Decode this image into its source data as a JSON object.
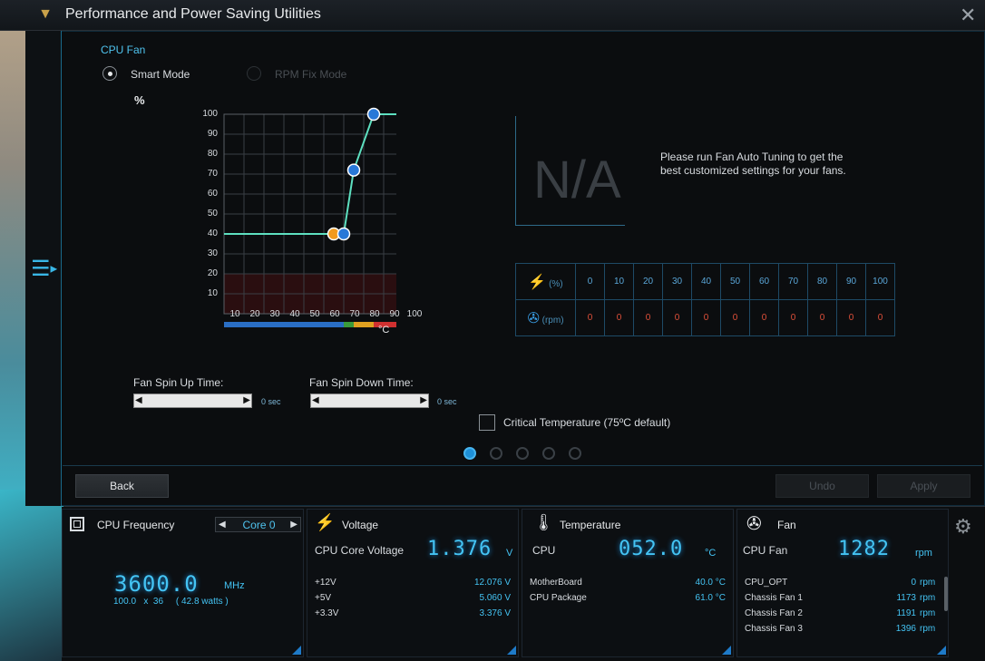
{
  "window": {
    "title": "Performance and Power Saving Utilities"
  },
  "fan_section": {
    "title": "CPU Fan",
    "modes": [
      "Smart Mode",
      "RPM Fix Mode"
    ],
    "selected_mode": "Smart Mode",
    "y_unit": "%",
    "x_unit": "°C",
    "y_ticks": [
      "100",
      "90",
      "80",
      "70",
      "60",
      "50",
      "40",
      "30",
      "20",
      "10"
    ],
    "x_ticks": [
      "10",
      "20",
      "30",
      "40",
      "50",
      "60",
      "70",
      "80",
      "90",
      "100"
    ]
  },
  "chart_data": {
    "type": "line",
    "xlabel": "°C",
    "ylabel": "%",
    "xlim": [
      0,
      100
    ],
    "ylim": [
      0,
      100
    ],
    "series": [
      {
        "x": [
          0,
          55,
          60,
          65,
          75,
          100
        ],
        "y": [
          40,
          40,
          40,
          72,
          100,
          100
        ]
      }
    ],
    "control_points": [
      {
        "x": 55,
        "y": 40,
        "color": "#f29a1c"
      },
      {
        "x": 60,
        "y": 40,
        "color": "#2878d8"
      },
      {
        "x": 65,
        "y": 72,
        "color": "#2878d8"
      },
      {
        "x": 75,
        "y": 100,
        "color": "#2878d8"
      }
    ],
    "critical_band_y": [
      0,
      20
    ],
    "temperature_zones": [
      {
        "from": 0,
        "to": 60,
        "color": "#2a6ec4"
      },
      {
        "from": 60,
        "to": 65,
        "color": "#3a9a3a"
      },
      {
        "from": 65,
        "to": 75,
        "color": "#e0a020"
      },
      {
        "from": 75,
        "to": 100,
        "color": "#d03030"
      }
    ],
    "grid": true
  },
  "auto_tuning": {
    "value": "N/A",
    "message": "Please run Fan Auto Tuning to get the best customized settings for your fans.",
    "pct_label": "(%)",
    "rpm_label": "(rpm)",
    "pct_values": [
      "0",
      "10",
      "20",
      "30",
      "40",
      "50",
      "60",
      "70",
      "80",
      "90",
      "100"
    ],
    "rpm_values": [
      "0",
      "0",
      "0",
      "0",
      "0",
      "0",
      "0",
      "0",
      "0",
      "0",
      "0"
    ]
  },
  "spin": {
    "up_label": "Fan Spin Up Time:",
    "up_value": "0 sec",
    "down_label": "Fan Spin Down Time:",
    "down_value": "0 sec"
  },
  "critical": {
    "label": "Critical Temperature (75ºC default)",
    "checked": false
  },
  "pager": {
    "count": 5,
    "active": 0
  },
  "buttons": {
    "back": "Back",
    "undo": "Undo",
    "apply": "Apply"
  },
  "cpu_freq": {
    "title": "CPU Frequency",
    "core": "Core 0",
    "value": "3600.0",
    "unit": "MHz",
    "detail": "100.0   x  36     ( 42.8 watts )"
  },
  "voltage": {
    "title": "Voltage",
    "main_label": "CPU Core Voltage",
    "main_value": "1.376",
    "main_unit": "V",
    "rows": [
      {
        "label": "+12V",
        "value": "12.076  V"
      },
      {
        "label": "+5V",
        "value": "5.060  V"
      },
      {
        "label": "+3.3V",
        "value": "3.376  V"
      }
    ]
  },
  "temperature": {
    "title": "Temperature",
    "main_label": "CPU",
    "main_value": "052.0",
    "main_unit": "°C",
    "rows": [
      {
        "label": "MotherBoard",
        "value": "40.0 °C"
      },
      {
        "label": "CPU Package",
        "value": "61.0 °C"
      }
    ]
  },
  "fan": {
    "title": "Fan",
    "main_label": "CPU Fan",
    "main_value": "1282",
    "main_unit": "rpm",
    "rows": [
      {
        "label": "CPU_OPT",
        "value": "0",
        "unit": "rpm"
      },
      {
        "label": "Chassis Fan 1",
        "value": "1173",
        "unit": "rpm"
      },
      {
        "label": "Chassis Fan 2",
        "value": "1191",
        "unit": "rpm"
      },
      {
        "label": "Chassis Fan 3",
        "value": "1396",
        "unit": "rpm"
      }
    ]
  }
}
